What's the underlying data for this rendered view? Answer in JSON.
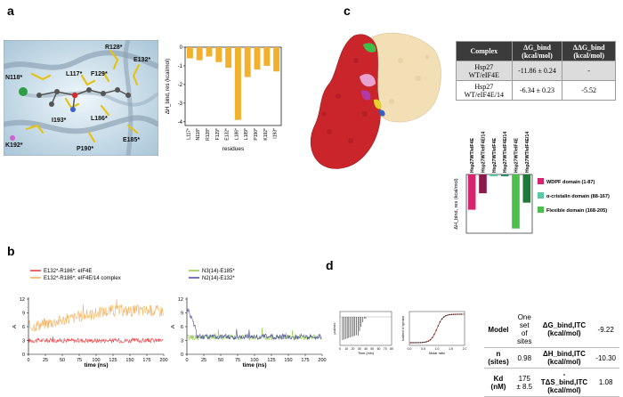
{
  "panel_labels": {
    "a": "a",
    "b": "b",
    "c": "c",
    "d": "d"
  },
  "panel_a": {
    "structure_labels": [
      {
        "text": "R128*"
      },
      {
        "text": "E132*"
      },
      {
        "text": "N118*"
      },
      {
        "text": "L117*"
      },
      {
        "text": "F129*"
      },
      {
        "text": "I193*"
      },
      {
        "text": "L186*"
      },
      {
        "text": "K192*"
      },
      {
        "text": "P190*"
      },
      {
        "text": "E185*"
      }
    ]
  },
  "chart_data": [
    {
      "type": "bar",
      "title": "",
      "categories": [
        "L117*",
        "N118*",
        "R128*",
        "F129*",
        "E132*",
        "L186*",
        "L189*",
        "P190*",
        "K192*",
        "I193*"
      ],
      "values": [
        -0.6,
        -0.7,
        -0.5,
        -0.8,
        -1.1,
        -3.9,
        -1.6,
        -1.2,
        -1.0,
        -1.3
      ],
      "xlabel": "residues",
      "ylabel": "ΔH_bind, res (kcal/mol)",
      "yticks": [
        0,
        -1,
        -2,
        -3,
        -4
      ],
      "ylim": [
        -4.2,
        0
      ],
      "bar_color": "#f2b02d"
    },
    {
      "type": "line",
      "title": "",
      "xlabel": "time (ns)",
      "ylabel": "Å",
      "xlim": [
        0,
        200
      ],
      "ylim": [
        0,
        12
      ],
      "xticks": [
        0,
        25,
        50,
        75,
        100,
        125,
        150,
        175,
        200
      ],
      "yticks": [
        0,
        3,
        6,
        9,
        12
      ],
      "series": [
        {
          "name": "E132*-R186*: eIF4E",
          "color": "#e8262a",
          "mean": 3.0,
          "spread": 0.5
        },
        {
          "name": "E132*-R186*: eIF4E/14 complex",
          "color": "#f5a84a",
          "mean_start": 6.0,
          "mean_end": 9.5,
          "spread": 1.3
        }
      ]
    },
    {
      "type": "line",
      "title": "",
      "xlabel": "time (ns)",
      "ylabel": "Å",
      "xlim": [
        0,
        200
      ],
      "ylim": [
        0,
        12
      ],
      "xticks": [
        0,
        25,
        50,
        75,
        100,
        125,
        150,
        175,
        200
      ],
      "yticks": [
        0,
        3,
        6,
        9,
        12
      ],
      "series": [
        {
          "name": "N3(14)-E185*",
          "color": "#8cc63f",
          "mean": 3.7,
          "spread": 0.6
        },
        {
          "name": "N2(14)-E132*",
          "color": "#3b3b9b",
          "mean": 3.8,
          "spread": 0.6,
          "initial_peak": 10.2
        }
      ]
    },
    {
      "type": "bar",
      "title": "",
      "categories": [
        "Hsp27WT/eIF4E",
        "Hsp27WT/eIF4E/14",
        "Hsp27WT/eIF4E",
        "Hsp27WT/eIF4E/14",
        "Hsp27WT/eIF4E",
        "Hsp27WT/eIF4E/14"
      ],
      "values": [
        -15,
        -8,
        -0.8,
        -0.8,
        -23,
        -12
      ],
      "colors": [
        "#d6246e",
        "#8b1a4a",
        "#58c9a0",
        "#2e8b66",
        "#4cbf4c",
        "#1f7a3a"
      ],
      "ylabel": "ΔH_bind, res (kcal/mol)",
      "ylim": [
        -25,
        0
      ],
      "legend": [
        {
          "label": "WDPF domain (1-87)",
          "color": "#d6246e"
        },
        {
          "label": "α-cristalin domain (88-167)",
          "color": "#58c9a0"
        },
        {
          "label": "Flexible domain (168-205)",
          "color": "#4cbf4c"
        }
      ],
      "legend_position": "right"
    },
    {
      "type": "scatter",
      "title": "",
      "xlabel": "Time (min)",
      "ylabel": "μcal/sec",
      "xlim": [
        0,
        80
      ],
      "xticks": [
        0,
        10,
        20,
        30,
        40,
        50,
        60,
        70,
        80
      ]
    },
    {
      "type": "scatter",
      "title": "",
      "xlabel": "Molar ratio",
      "ylabel": "kcal/mol of injectant",
      "xlim": [
        0,
        2.0
      ],
      "xticks": [
        0.0,
        0.5,
        1.0,
        1.5,
        2.0
      ]
    }
  ],
  "panel_c_table": {
    "headers": [
      "Complex",
      "ΔG_bind (kcal/mol)",
      "ΔΔG_bind (kcal/mol)"
    ],
    "rows": [
      [
        "Hsp27 WT/eIF4E",
        "-11.86 ± 0.24",
        "-"
      ],
      [
        "Hsp27 WT/eIF4E/14",
        "-6.34 ± 0.23",
        "-5.52"
      ]
    ]
  },
  "panel_d_table": {
    "rows": [
      [
        "Model",
        "One set of sites",
        "ΔG_bind,ITC (kcal/mol)",
        "-9.22"
      ],
      [
        "n (sites)",
        "0.98",
        "ΔH_bind,ITC (kcal/mol)",
        "-10.30"
      ],
      [
        "Kd (nM)",
        "175 ± 8.5",
        "-TΔS_bind,ITC (kcal/mol)",
        "1.08"
      ]
    ]
  }
}
